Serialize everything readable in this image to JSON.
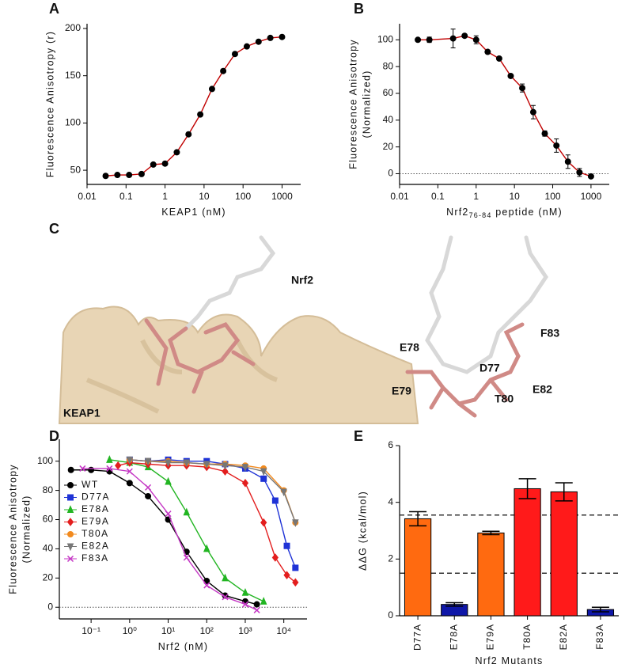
{
  "panel_labels": [
    "A",
    "B",
    "C",
    "D",
    "E"
  ],
  "structure": {
    "labels": [
      "Nrf2",
      "KEAP1",
      "E78",
      "D77",
      "F83",
      "E79",
      "T80",
      "E82"
    ]
  },
  "chart_data": [
    {
      "type": "scatter",
      "xscale": "log",
      "color": "#000000",
      "line_color": "#c00000",
      "xlabel": "KEAP1 (nM)",
      "ylabel": [
        "Fluorescence Anisotropy (r)"
      ],
      "x": [
        0.03,
        0.06,
        0.12,
        0.25,
        0.5,
        1,
        2,
        4,
        8,
        16,
        31,
        62,
        125,
        250,
        500,
        1000
      ],
      "values": [
        44,
        45,
        45,
        46,
        56,
        57,
        69,
        88,
        109,
        136,
        155,
        173,
        181,
        186,
        190,
        191
      ],
      "xlim": [
        0.01,
        3000
      ],
      "xticks": [
        0.01,
        0.1,
        1,
        10,
        100,
        1000
      ],
      "ylim": [
        35,
        205
      ],
      "yticks": [
        50,
        100,
        150,
        200
      ]
    },
    {
      "type": "scatter",
      "xscale": "log",
      "color": "#000000",
      "line_color": "#c00000",
      "zero_line": true,
      "xlabel": "Nrf2",
      "xlabel_sub": "76-84",
      "xlabel_rest": " peptide (nM)",
      "ylabel": [
        "Fluorescence Anisotropy",
        "(Normalized)"
      ],
      "x": [
        0.03,
        0.06,
        0.25,
        0.5,
        1,
        2,
        4,
        8,
        16,
        31,
        62,
        125,
        250,
        500,
        1000
      ],
      "values": [
        100,
        100,
        101,
        103,
        100,
        91,
        86,
        73,
        64,
        46,
        30,
        21,
        9,
        1,
        -2
      ],
      "errors": [
        1,
        2,
        7,
        1,
        3,
        1,
        1,
        1,
        3,
        5,
        2,
        5,
        5,
        3,
        1
      ],
      "xlim": [
        0.01,
        3000
      ],
      "xticks": [
        0.01,
        0.1,
        1,
        10,
        100,
        1000
      ],
      "ylim": [
        -8,
        112
      ],
      "yticks": [
        0,
        20,
        40,
        60,
        80,
        100
      ]
    },
    {
      "type": "scatter",
      "xscale": "log",
      "zero_line": true,
      "xlabel": "Nrf2 (nM)",
      "ylabel": [
        "Fluorescence Anisotropy",
        "(Normalized)"
      ],
      "xlim": [
        0.015,
        40000
      ],
      "xticks": [
        {
          "value": 0.1,
          "label": "10⁻¹"
        },
        {
          "value": 1,
          "label": "10⁰"
        },
        {
          "value": 10,
          "label": "10¹"
        },
        {
          "value": 100,
          "label": "10²"
        },
        {
          "value": 1000,
          "label": "10³"
        },
        {
          "value": 10000,
          "label": "10⁴"
        }
      ],
      "ylim": [
        -8,
        115
      ],
      "yticks": [
        0,
        20,
        40,
        60,
        80,
        100
      ],
      "series": [
        {
          "name": "WT",
          "color": "#000000",
          "marker": "circle",
          "x": [
            0.03,
            0.1,
            0.3,
            1,
            3,
            10,
            30,
            100,
            300,
            1000,
            2000
          ],
          "values": [
            94,
            94,
            93,
            85,
            76,
            60,
            38,
            18,
            8,
            4,
            2
          ]
        },
        {
          "name": "D77A",
          "color": "#1f33d6",
          "marker": "square",
          "x": [
            1,
            3,
            10,
            30,
            100,
            300,
            1000,
            3000,
            6000,
            12000,
            20000
          ],
          "values": [
            101,
            100,
            101,
            100,
            100,
            98,
            95,
            88,
            73,
            42,
            27
          ]
        },
        {
          "name": "E78A",
          "color": "#22b522",
          "marker": "triangle",
          "x": [
            0.3,
            1,
            3,
            10,
            30,
            100,
            300,
            1000,
            3000
          ],
          "values": [
            101,
            99,
            96,
            86,
            65,
            40,
            20,
            10,
            4
          ]
        },
        {
          "name": "E79A",
          "color": "#e31e1e",
          "marker": "diamond",
          "x": [
            0.5,
            1,
            3,
            10,
            30,
            100,
            300,
            1000,
            3000,
            6000,
            12000,
            20000
          ],
          "values": [
            97,
            99,
            98,
            97,
            97,
            96,
            93,
            85,
            58,
            34,
            22,
            17
          ]
        },
        {
          "name": "T80A",
          "color": "#f28a1e",
          "marker": "circle",
          "x": [
            1,
            3,
            10,
            30,
            100,
            300,
            1000,
            3000,
            10000,
            20000
          ],
          "values": [
            101,
            100,
            100,
            99,
            98,
            98,
            97,
            95,
            80,
            58
          ]
        },
        {
          "name": "E82A",
          "color": "#777777",
          "marker": "invtriangle",
          "x": [
            1,
            3,
            10,
            30,
            100,
            300,
            1000,
            3000,
            10000,
            20000
          ],
          "values": [
            101,
            100,
            99,
            99,
            98,
            97,
            96,
            93,
            79,
            58
          ]
        },
        {
          "name": "F83A",
          "color": "#c436c4",
          "marker": "x",
          "x": [
            0.06,
            0.3,
            1,
            3,
            10,
            30,
            100,
            300,
            1000,
            2000
          ],
          "values": [
            95,
            95,
            93,
            82,
            64,
            34,
            15,
            7,
            2,
            -2
          ]
        }
      ]
    },
    {
      "type": "bar",
      "xlabel": "Nrf2 Mutants",
      "ylabel": [
        "ΔΔG (kcal/mol)"
      ],
      "categories": [
        "D77A",
        "E78A",
        "E79A",
        "T80A",
        "E82A",
        "F83A"
      ],
      "values": [
        3.42,
        0.4,
        2.92,
        4.48,
        4.37,
        0.22
      ],
      "errors": [
        0.25,
        0.06,
        0.06,
        0.35,
        0.32,
        0.08
      ],
      "colors": [
        "#ff6a10",
        "#0f17a8",
        "#ff6a10",
        "#ff1a1a",
        "#ff1a1a",
        "#0f17a8"
      ],
      "ref_lines": [
        3.55,
        1.5
      ],
      "ylim": [
        0,
        6
      ],
      "yticks": [
        0,
        2,
        4,
        6
      ]
    }
  ]
}
